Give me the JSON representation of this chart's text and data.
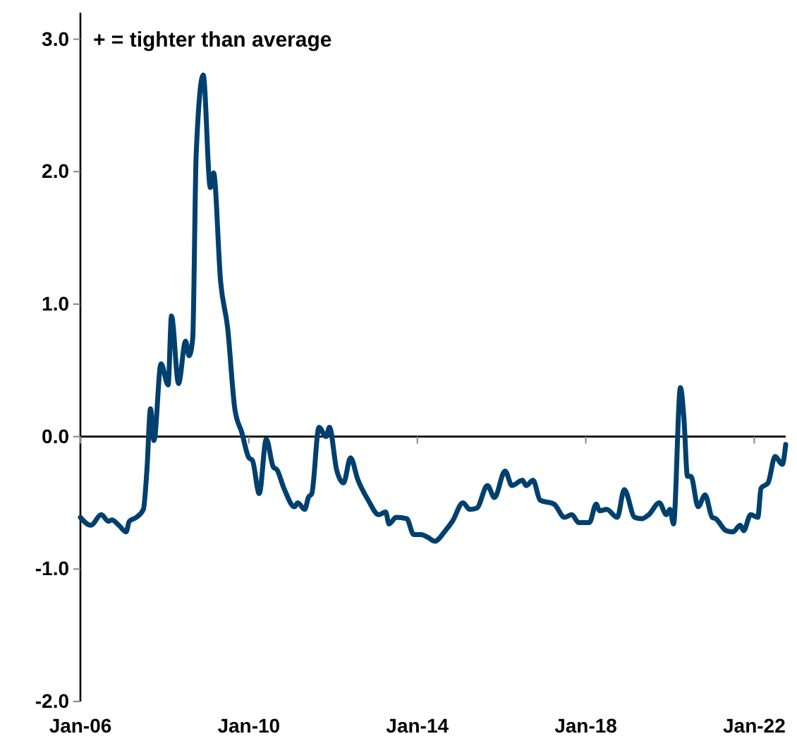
{
  "chart_data": {
    "type": "line",
    "annotations": [
      "+ = tighter than average"
    ],
    "x": [
      "2006-01",
      "2006-04",
      "2006-07",
      "2006-09",
      "2006-10",
      "2006-12",
      "2007-02",
      "2007-03",
      "2007-05",
      "2007-07",
      "2007-08",
      "2007-09",
      "2007-10",
      "2007-12",
      "2008-02",
      "2008-03",
      "2008-05",
      "2008-07",
      "2008-08",
      "2008-09",
      "2008-10",
      "2008-12",
      "2009-02",
      "2009-03",
      "2009-05",
      "2009-07",
      "2009-09",
      "2009-11",
      "2010-01",
      "2010-02",
      "2010-04",
      "2010-06",
      "2010-08",
      "2010-09",
      "2010-11",
      "2011-02",
      "2011-03",
      "2011-05",
      "2011-06",
      "2011-07",
      "2011-09",
      "2011-11",
      "2011-12",
      "2012-02",
      "2012-04",
      "2012-06",
      "2012-08",
      "2012-11",
      "2013-02",
      "2013-04",
      "2013-05",
      "2013-07",
      "2013-10",
      "2013-12",
      "2014-02",
      "2014-04",
      "2014-06",
      "2014-09",
      "2014-11",
      "2015-02",
      "2015-04",
      "2015-06",
      "2015-09",
      "2015-11",
      "2016-02",
      "2016-04",
      "2016-07",
      "2016-08",
      "2016-10",
      "2016-12",
      "2017-04",
      "2017-07",
      "2017-09",
      "2017-11",
      "2018-02",
      "2018-04",
      "2018-05",
      "2018-07",
      "2018-10",
      "2018-12",
      "2019-03",
      "2019-05",
      "2019-07",
      "2019-10",
      "2019-12",
      "2020-01",
      "2020-02",
      "2020-04",
      "2020-05",
      "2020-06",
      "2020-07",
      "2020-09",
      "2020-11",
      "2021-01",
      "2021-02",
      "2021-05",
      "2021-07",
      "2021-09",
      "2021-10",
      "2021-12",
      "2022-02",
      "2022-03",
      "2022-05",
      "2022-07",
      "2022-09",
      "2022-10"
    ],
    "series": [
      {
        "color": "#00406e",
        "values": [
          -0.61,
          -0.67,
          -0.59,
          -0.64,
          -0.63,
          -0.67,
          -0.72,
          -0.64,
          -0.61,
          -0.55,
          -0.25,
          0.21,
          -0.03,
          0.55,
          0.39,
          0.91,
          0.4,
          0.72,
          0.61,
          0.74,
          2.13,
          2.73,
          1.88,
          1.99,
          1.17,
          0.82,
          0.21,
          0.03,
          -0.16,
          -0.18,
          -0.43,
          -0.02,
          -0.23,
          -0.25,
          -0.39,
          -0.53,
          -0.5,
          -0.55,
          -0.46,
          -0.43,
          0.07,
          0.0,
          0.07,
          -0.25,
          -0.35,
          -0.16,
          -0.32,
          -0.48,
          -0.59,
          -0.57,
          -0.66,
          -0.61,
          -0.62,
          -0.74,
          -0.74,
          -0.76,
          -0.79,
          -0.71,
          -0.64,
          -0.5,
          -0.55,
          -0.54,
          -0.37,
          -0.46,
          -0.26,
          -0.37,
          -0.33,
          -0.37,
          -0.33,
          -0.48,
          -0.51,
          -0.61,
          -0.59,
          -0.65,
          -0.65,
          -0.51,
          -0.56,
          -0.55,
          -0.61,
          -0.4,
          -0.61,
          -0.62,
          -0.59,
          -0.5,
          -0.59,
          -0.55,
          -0.66,
          0.37,
          0.14,
          -0.3,
          -0.3,
          -0.53,
          -0.44,
          -0.61,
          -0.62,
          -0.71,
          -0.72,
          -0.67,
          -0.71,
          -0.59,
          -0.61,
          -0.39,
          -0.35,
          -0.15,
          -0.21,
          -0.06
        ]
      }
    ],
    "xlim": [
      "2006-01",
      "2022-10"
    ],
    "xticks": [
      {
        "value": "2006-01",
        "label": "Jan-06"
      },
      {
        "value": "2010-01",
        "label": "Jan-10"
      },
      {
        "value": "2014-01",
        "label": "Jan-14"
      },
      {
        "value": "2018-01",
        "label": "Jan-18"
      },
      {
        "value": "2022-01",
        "label": "Jan-22"
      }
    ],
    "ylim": [
      -2,
      3.2
    ],
    "yticks": [
      {
        "value": -2,
        "label": "-2.0"
      },
      {
        "value": -1,
        "label": "-1.0"
      },
      {
        "value": 0,
        "label": "0.0"
      },
      {
        "value": 1,
        "label": "1.0"
      },
      {
        "value": 2,
        "label": "2.0"
      },
      {
        "value": 3,
        "label": "3.0"
      }
    ],
    "marker": "none",
    "line_style": "solid"
  }
}
